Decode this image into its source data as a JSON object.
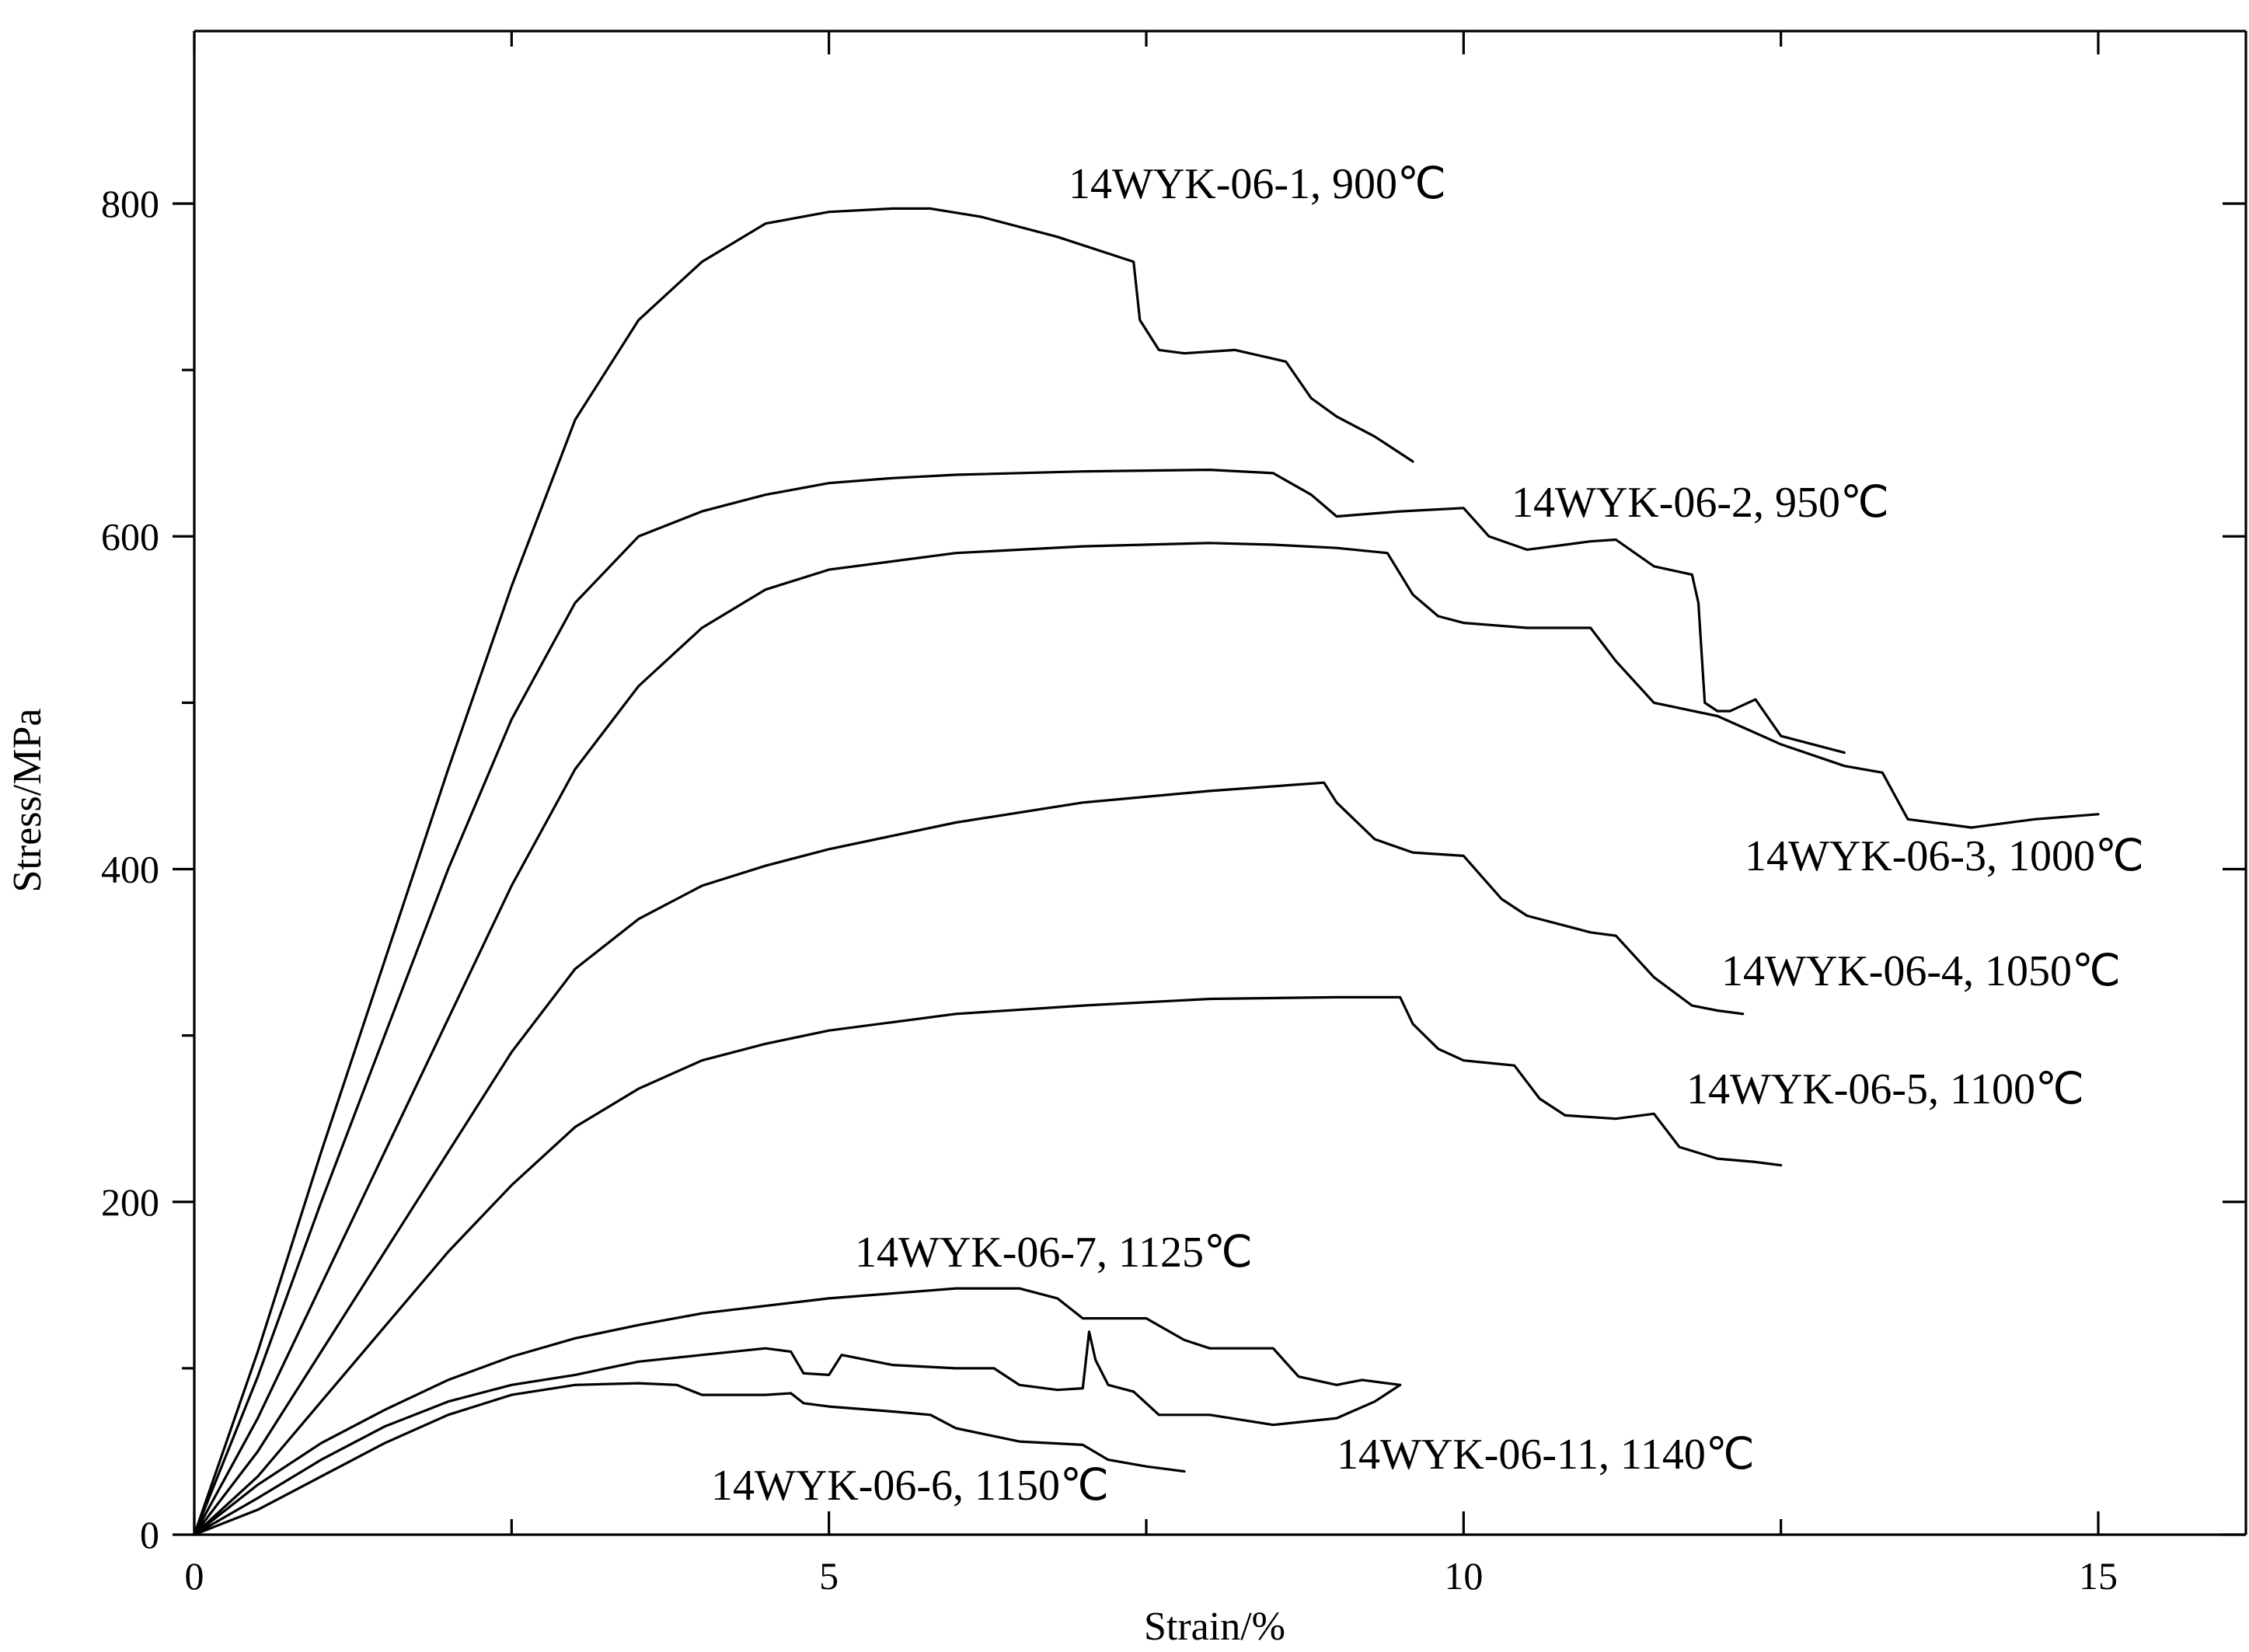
{
  "chart_data": {
    "type": "line",
    "title": "",
    "xlabel": "Strain/%",
    "ylabel": "Stress/MPa",
    "xlim": [
      0,
      16.2
    ],
    "ylim": [
      0,
      895
    ],
    "x_ticks": [
      0,
      5,
      10,
      15
    ],
    "x_tick_labels": [
      "0",
      "5",
      "10",
      "15"
    ],
    "y_ticks": [
      0,
      200,
      400,
      600,
      800
    ],
    "y_tick_labels": [
      "0",
      "200",
      "400",
      "600",
      "800"
    ],
    "grid": false,
    "legend": "none",
    "series": [
      {
        "name": "14WYK-06-1, 900℃",
        "x": [
          0,
          0.5,
          1,
          1.5,
          2,
          2.5,
          3,
          3.5,
          4,
          4.5,
          5,
          5.5,
          5.8,
          6.2,
          6.8,
          7.4,
          7.45,
          7.6,
          7.8,
          8.2,
          8.6,
          8.8,
          9.0,
          9.3,
          9.6
        ],
        "y": [
          0,
          110,
          230,
          345,
          460,
          570,
          670,
          730,
          765,
          788,
          795,
          797,
          797,
          792,
          780,
          765,
          730,
          712,
          710,
          712,
          705,
          683,
          672,
          660,
          645
        ]
      },
      {
        "name": "14WYK-06-2, 950℃",
        "x": [
          0,
          0.5,
          1,
          1.5,
          2,
          2.5,
          3,
          3.5,
          4,
          4.5,
          5,
          5.5,
          6,
          7,
          8,
          8.5,
          8.8,
          9.0,
          9.5,
          10.0,
          10.2,
          10.5,
          11.0,
          11.2,
          11.5,
          11.8,
          11.85,
          11.9,
          12.0,
          12.1,
          12.3,
          12.5,
          13.0
        ],
        "y": [
          0,
          95,
          200,
          300,
          400,
          490,
          560,
          600,
          615,
          625,
          632,
          635,
          637,
          639,
          640,
          638,
          625,
          612,
          615,
          617,
          600,
          592,
          597,
          598,
          582,
          577,
          560,
          500,
          495,
          495,
          502,
          480,
          470
        ]
      },
      {
        "name": "14WYK-06-3, 1000℃",
        "x": [
          0,
          0.5,
          1,
          1.5,
          2,
          2.5,
          3,
          3.5,
          4,
          4.5,
          5,
          6,
          7,
          8,
          8.5,
          9.0,
          9.4,
          9.6,
          9.8,
          10.0,
          10.5,
          11.0,
          11.2,
          11.5,
          12.0,
          12.5,
          13.0,
          13.3,
          13.5,
          14.0,
          14.5,
          15.0
        ],
        "y": [
          0,
          70,
          150,
          230,
          310,
          390,
          460,
          510,
          545,
          568,
          580,
          590,
          594,
          596,
          595,
          593,
          590,
          565,
          552,
          548,
          545,
          545,
          525,
          500,
          492,
          475,
          462,
          458,
          430,
          425,
          430,
          433
        ]
      },
      {
        "name": "14WYK-06-4, 1050℃",
        "x": [
          0,
          0.5,
          1,
          1.5,
          2,
          2.5,
          3,
          3.5,
          4,
          4.5,
          5,
          6,
          7,
          8,
          8.9,
          9.0,
          9.3,
          9.6,
          10.0,
          10.3,
          10.5,
          11.0,
          11.2,
          11.5,
          11.8,
          12.0,
          12.2
        ],
        "y": [
          0,
          50,
          110,
          170,
          230,
          290,
          340,
          370,
          390,
          402,
          412,
          428,
          440,
          447,
          452,
          440,
          418,
          410,
          408,
          382,
          372,
          362,
          360,
          335,
          318,
          315,
          313
        ]
      },
      {
        "name": "14WYK-06-5, 1100℃",
        "x": [
          0,
          0.5,
          1,
          1.5,
          2,
          2.5,
          3,
          3.5,
          4,
          4.5,
          5,
          6,
          7,
          8,
          9,
          9.5,
          9.6,
          9.8,
          10.0,
          10.4,
          10.6,
          10.8,
          11.2,
          11.5,
          11.7,
          12.0,
          12.3,
          12.5
        ],
        "y": [
          0,
          35,
          80,
          125,
          170,
          210,
          245,
          268,
          285,
          295,
          303,
          313,
          318,
          322,
          323,
          323,
          307,
          292,
          285,
          282,
          262,
          252,
          250,
          253,
          233,
          226,
          224,
          222
        ]
      },
      {
        "name": "14WYK-06-7, 1125℃",
        "x": [
          0,
          0.5,
          1,
          1.5,
          2,
          2.5,
          3,
          3.5,
          4,
          5,
          6,
          6.5,
          6.8,
          7.0,
          7.5,
          7.8,
          8.0,
          8.5,
          8.7,
          9.0,
          9.2,
          9.5
        ],
        "y": [
          0,
          30,
          55,
          75,
          93,
          107,
          118,
          126,
          133,
          142,
          148,
          148,
          142,
          130,
          130,
          117,
          112,
          112,
          95,
          90,
          93,
          90
        ]
      },
      {
        "name": "14WYK-06-11, 1140℃",
        "x": [
          0,
          0.5,
          1,
          1.5,
          2,
          2.5,
          3,
          3.5,
          4,
          4.5,
          4.7,
          4.8,
          5.0,
          5.1,
          5.5,
          6.0,
          6.3,
          6.5,
          6.8,
          7.0,
          7.05,
          7.1,
          7.2,
          7.4,
          7.6,
          8.0,
          8.5,
          9.0,
          9.3,
          9.5
        ],
        "y": [
          0,
          22,
          45,
          65,
          80,
          90,
          96,
          104,
          108,
          112,
          110,
          97,
          96,
          108,
          102,
          100,
          100,
          90,
          87,
          88,
          122,
          105,
          90,
          86,
          72,
          72,
          66,
          70,
          80,
          90
        ]
      },
      {
        "name": "14WYK-06-6, 1150℃",
        "x": [
          0,
          0.5,
          1,
          1.5,
          2,
          2.5,
          3,
          3.5,
          3.8,
          4.0,
          4.5,
          4.7,
          4.8,
          5.0,
          5.5,
          5.8,
          6.0,
          6.5,
          7.0,
          7.2,
          7.5,
          7.8
        ],
        "y": [
          0,
          15,
          35,
          55,
          72,
          84,
          90,
          91,
          90,
          84,
          84,
          85,
          79,
          77,
          74,
          72,
          64,
          56,
          54,
          45,
          41,
          38
        ]
      }
    ],
    "annotations": [
      {
        "text": "14WYK-06-1, 900℃",
        "series": 0
      },
      {
        "text": "14WYK-06-2, 950℃",
        "series": 1
      },
      {
        "text": "14WYK-06-3, 1000℃",
        "series": 2
      },
      {
        "text": "14WYK-06-4, 1050℃",
        "series": 3
      },
      {
        "text": "14WYK-06-5, 1100℃",
        "series": 4
      },
      {
        "text": "14WYK-06-7, 1125℃",
        "series": 5
      },
      {
        "text": "14WYK-06-11, 1140℃",
        "series": 6
      },
      {
        "text": "14WYK-06-6, 1150℃",
        "series": 7
      }
    ]
  }
}
